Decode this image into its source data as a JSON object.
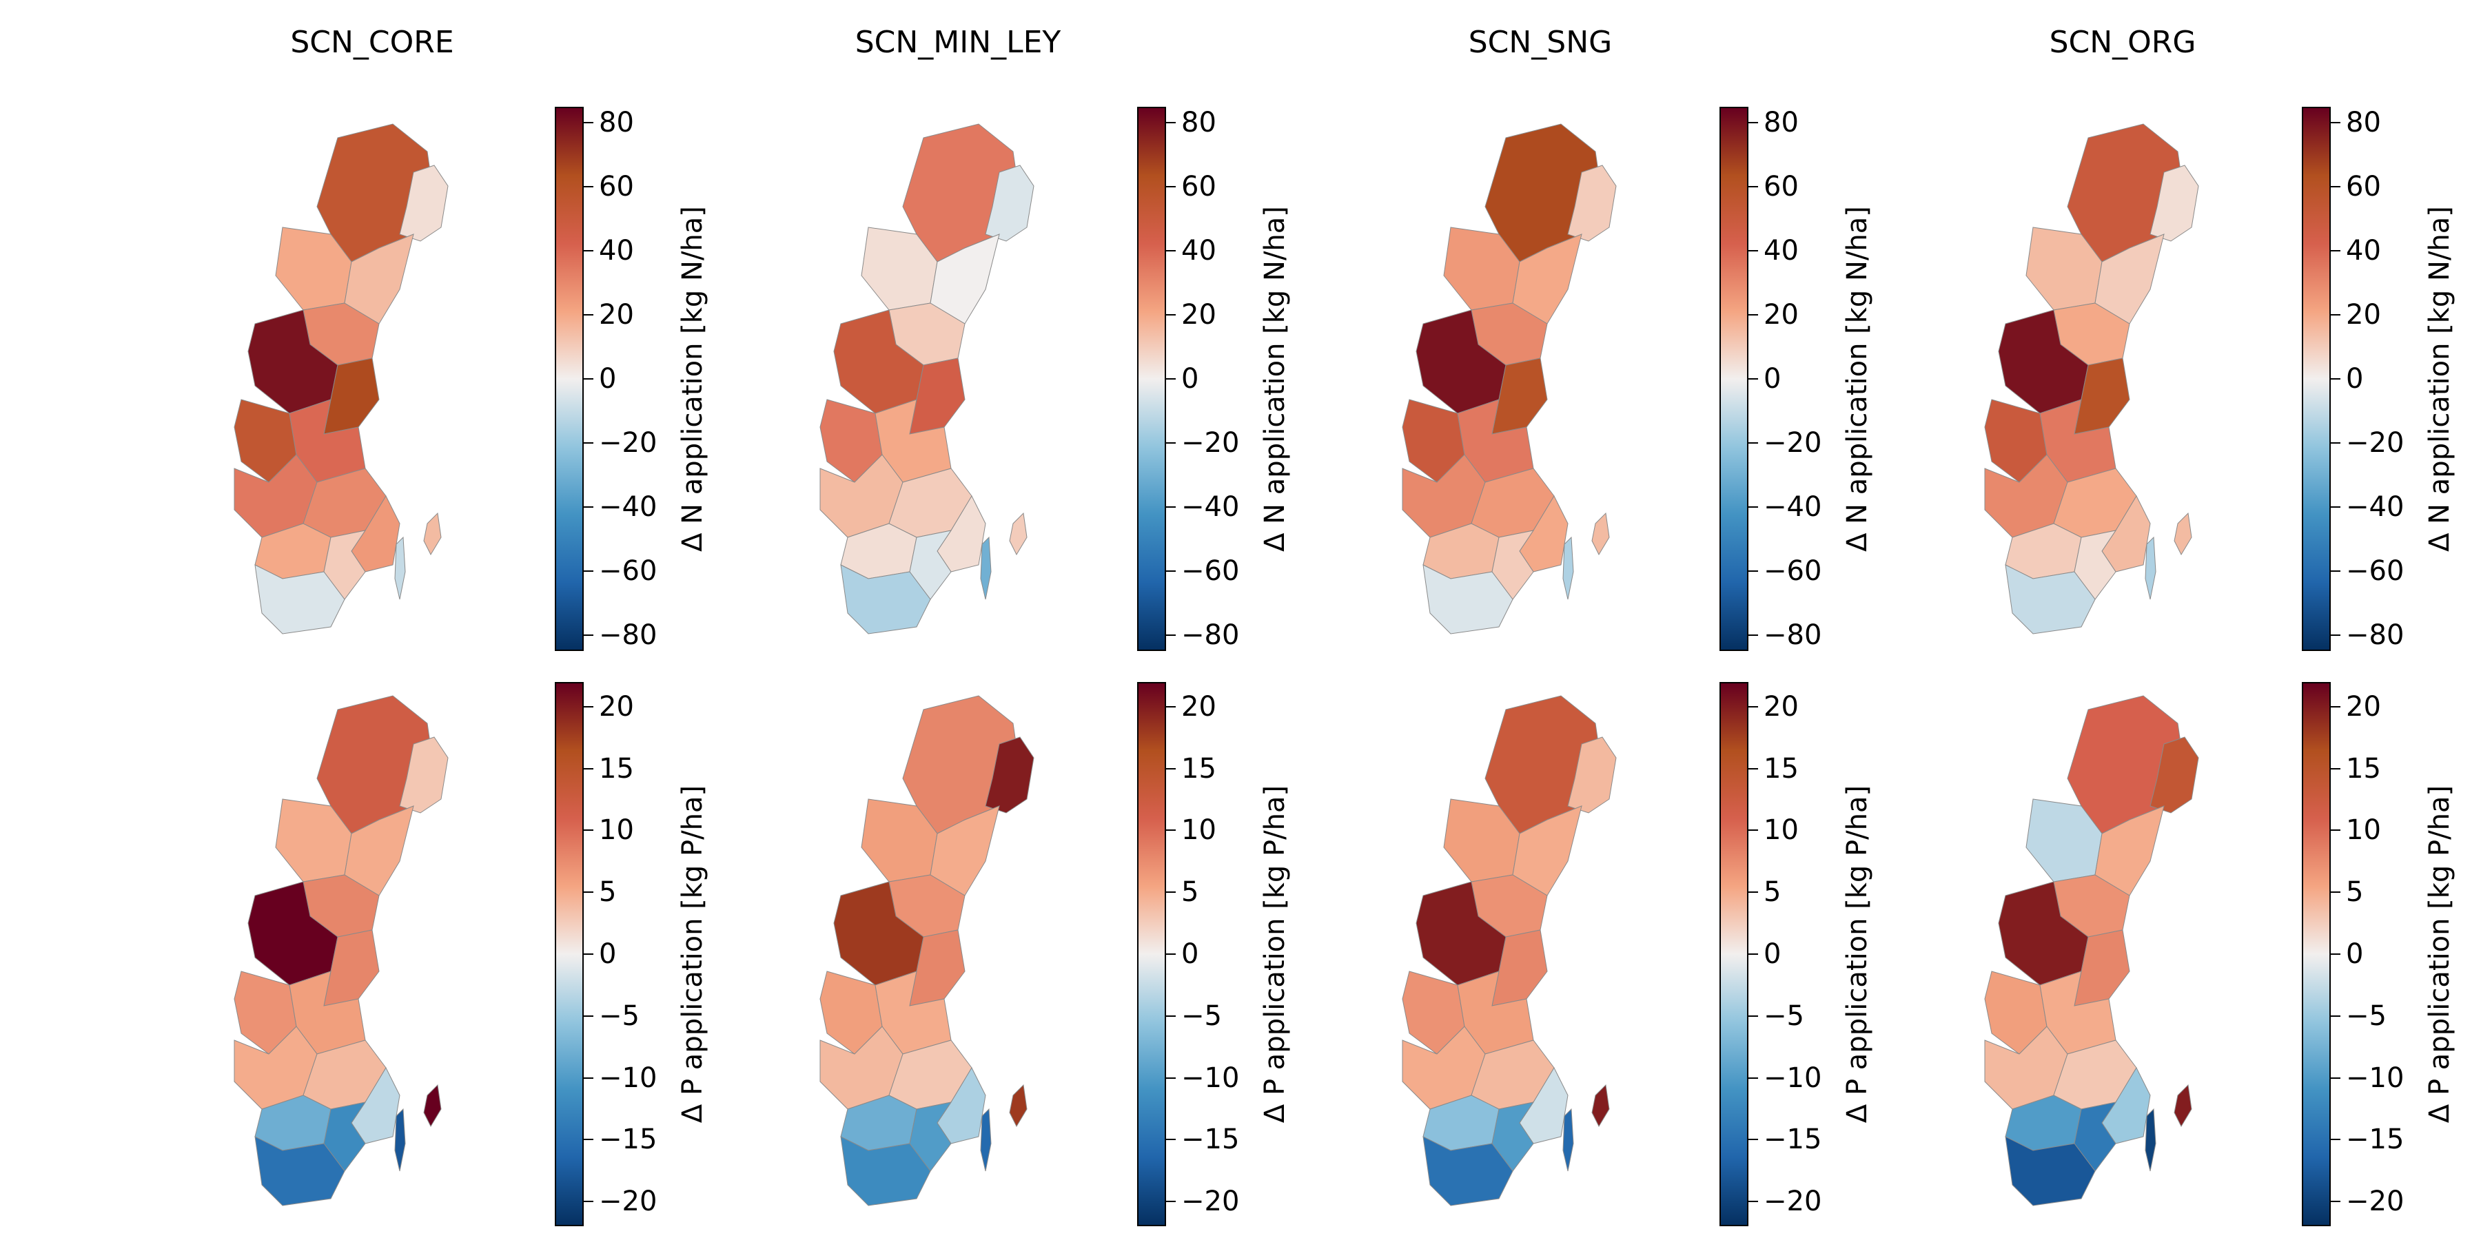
{
  "figure": {
    "columns": [
      "SCN_CORE",
      "SCN_MIN_LEY",
      "SCN_SNG",
      "SCN_ORG"
    ],
    "rows": [
      {
        "name": "n-application",
        "colorbar_label": "Δ N application [kg N/ha]",
        "range": [
          -85,
          85
        ],
        "ticks": [
          "80",
          "60",
          "40",
          "20",
          "0",
          "−20",
          "−40",
          "−60",
          "−80"
        ],
        "tick_values": [
          80,
          60,
          40,
          20,
          0,
          -20,
          -40,
          -60,
          -80
        ]
      },
      {
        "name": "p-application",
        "colorbar_label": "Δ P application [kg P/ha]",
        "range": [
          -22,
          22
        ],
        "ticks": [
          "20",
          "15",
          "10",
          "5",
          "0",
          "−5",
          "−10",
          "−15",
          "−20"
        ],
        "tick_values": [
          20,
          15,
          10,
          5,
          0,
          -5,
          -10,
          -15,
          -20
        ]
      }
    ],
    "colormap": [
      "#053061",
      "#2166ac",
      "#4393c3",
      "#92c5de",
      "#f2efee",
      "#f4a582",
      "#d6604d",
      "#b2501f",
      "#67001f"
    ],
    "region_values": {
      "n": [
        [
          55,
          5,
          20,
          15,
          30,
          80,
          65,
          55,
          40,
          35,
          30,
          25,
          20,
          10,
          -5,
          15,
          -10
        ],
        [
          35,
          -5,
          5,
          0,
          10,
          50,
          45,
          35,
          20,
          15,
          10,
          5,
          5,
          -5,
          -15,
          10,
          -30
        ],
        [
          65,
          10,
          25,
          20,
          30,
          80,
          60,
          50,
          35,
          30,
          25,
          20,
          15,
          10,
          -5,
          15,
          -15
        ],
        [
          50,
          5,
          15,
          10,
          20,
          80,
          60,
          50,
          35,
          30,
          20,
          15,
          10,
          5,
          -10,
          15,
          -15
        ]
      ],
      "p": [
        [
          12,
          3,
          5,
          5,
          8,
          22,
          8,
          7,
          6,
          5,
          4,
          -3,
          -8,
          -12,
          -15,
          22,
          -18
        ],
        [
          8,
          20,
          6,
          5,
          7,
          18,
          8,
          6,
          5,
          4,
          3,
          -4,
          -8,
          -10,
          -12,
          18,
          -16
        ],
        [
          13,
          4,
          6,
          5,
          7,
          20,
          8,
          7,
          6,
          5,
          4,
          -2,
          -6,
          -10,
          -15,
          20,
          -16
        ],
        [
          11,
          14,
          -3,
          5,
          7,
          20,
          8,
          6,
          5,
          4,
          3,
          -5,
          -10,
          -14,
          -18,
          20,
          -20
        ]
      ]
    }
  }
}
